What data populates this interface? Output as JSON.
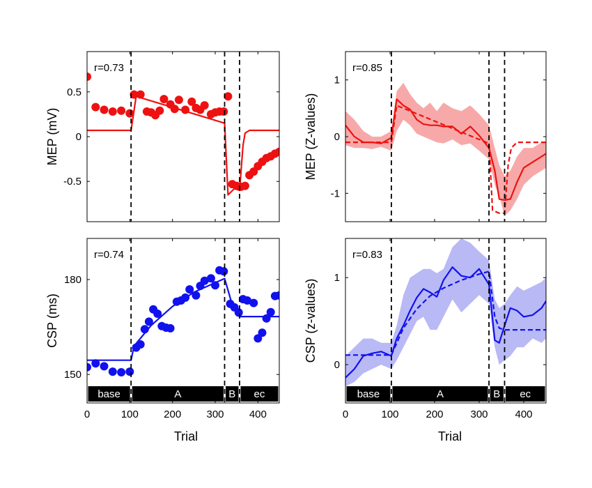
{
  "chart_data": [
    {
      "id": "mep_raw",
      "type": "scatter",
      "ylabel": "MEP (mV)",
      "xlabel": "",
      "r_label": "r=0.73",
      "xlim": [
        0,
        450
      ],
      "ylim": [
        -0.95,
        0.95
      ],
      "xticks": [
        0,
        100,
        200,
        300,
        400
      ],
      "show_xticklabels": false,
      "yticks": [
        -0.5,
        0,
        0.5
      ],
      "yticklabels": [
        "-0.5",
        "0",
        "0.5"
      ],
      "color": "#ee1111",
      "phase_lines": [
        103,
        322,
        357
      ],
      "series": [
        {
          "kind": "points",
          "x": [
            0,
            20,
            40,
            60,
            80,
            100,
            110,
            125,
            140,
            150,
            160,
            170,
            180,
            195,
            205,
            215,
            230,
            245,
            255,
            265,
            275,
            290,
            300,
            310,
            320,
            330,
            340,
            350,
            360,
            370,
            380,
            390,
            400,
            410,
            420,
            430,
            440,
            450
          ],
          "y": [
            0.67,
            0.33,
            0.3,
            0.28,
            0.29,
            0.26,
            0.47,
            0.47,
            0.28,
            0.27,
            0.24,
            0.29,
            0.42,
            0.36,
            0.31,
            0.41,
            0.3,
            0.39,
            0.32,
            0.3,
            0.35,
            0.25,
            0.27,
            0.28,
            0.28,
            0.45,
            -0.53,
            -0.55,
            -0.56,
            -0.55,
            -0.43,
            -0.39,
            -0.33,
            -0.28,
            -0.24,
            -0.22,
            -0.19,
            -0.17
          ]
        },
        {
          "kind": "line",
          "x": [
            0,
            103,
            115,
            322,
            330,
            345,
            357,
            365,
            370,
            380,
            450
          ],
          "y": [
            0.07,
            0.07,
            0.45,
            0.15,
            -0.65,
            -0.58,
            -0.6,
            -0.1,
            0.04,
            0.07,
            0.07
          ]
        }
      ],
      "segments": []
    },
    {
      "id": "mep_z",
      "type": "line",
      "ylabel": "MEP (Z-values)",
      "xlabel": "",
      "r_label": "r=0.85",
      "xlim": [
        0,
        450
      ],
      "ylim": [
        -1.5,
        1.5
      ],
      "xticks": [
        0,
        100,
        200,
        300,
        400
      ],
      "show_xticklabels": false,
      "yticks": [
        -1,
        0,
        1
      ],
      "yticklabels": [
        "-1",
        "0",
        "1"
      ],
      "color": "#ee1111",
      "band_color": "#f7a9a9",
      "phase_lines": [
        103,
        322,
        357
      ],
      "series": [
        {
          "kind": "band",
          "x": [
            0,
            20,
            40,
            60,
            80,
            103,
            115,
            130,
            145,
            160,
            175,
            190,
            205,
            220,
            240,
            260,
            280,
            300,
            322,
            335,
            345,
            357,
            370,
            385,
            400,
            420,
            440,
            450
          ],
          "lower": [
            -0.15,
            -0.2,
            -0.2,
            -0.22,
            -0.18,
            -0.25,
            0.1,
            0.3,
            0.2,
            0.05,
            0.0,
            -0.05,
            -0.1,
            -0.12,
            -0.05,
            -0.15,
            -0.12,
            -0.25,
            -0.4,
            -0.85,
            -1.05,
            -1.4,
            -1.3,
            -1.1,
            -0.85,
            -0.7,
            -0.6,
            -0.55
          ],
          "upper": [
            0.45,
            0.3,
            0.1,
            0.0,
            0.0,
            0.1,
            0.8,
            0.95,
            0.75,
            0.6,
            0.5,
            0.6,
            0.45,
            0.6,
            0.5,
            0.45,
            0.55,
            0.4,
            0.2,
            -0.2,
            -0.5,
            -0.7,
            -0.6,
            -0.35,
            -0.2,
            -0.2,
            -0.1,
            -0.1
          ]
        },
        {
          "kind": "line",
          "x": [
            0,
            20,
            40,
            60,
            80,
            103,
            115,
            130,
            145,
            160,
            175,
            190,
            205,
            220,
            240,
            260,
            280,
            300,
            322,
            335,
            345,
            357,
            370,
            385,
            400,
            420,
            440,
            450
          ],
          "y": [
            0.2,
            0.0,
            -0.1,
            -0.1,
            -0.12,
            -0.02,
            0.66,
            0.55,
            0.48,
            0.3,
            0.22,
            0.2,
            0.2,
            0.18,
            0.18,
            0.05,
            0.18,
            0.02,
            -0.2,
            -0.6,
            -1.1,
            -1.12,
            -1.1,
            -0.8,
            -0.55,
            -0.45,
            -0.35,
            -0.3
          ]
        },
        {
          "kind": "dashed",
          "x": [
            0,
            103,
            115,
            322,
            330,
            345,
            357,
            365,
            372,
            385,
            450
          ],
          "y": [
            -0.1,
            -0.1,
            0.55,
            -0.12,
            -1.3,
            -1.35,
            -1.35,
            -0.5,
            -0.2,
            -0.1,
            -0.1
          ]
        }
      ],
      "segments": []
    },
    {
      "id": "csp_raw",
      "type": "scatter",
      "ylabel": "CSP (ms)",
      "xlabel": "Trial",
      "r_label": "r=0.74",
      "xlim": [
        0,
        450
      ],
      "ylim": [
        141,
        193
      ],
      "xticks": [
        0,
        100,
        200,
        300,
        400
      ],
      "show_xticklabels": true,
      "xticklabels": [
        "0",
        "100",
        "200",
        "300",
        "400"
      ],
      "yticks": [
        150,
        180
      ],
      "yticklabels": [
        "150",
        "180"
      ],
      "color": "#1111ee",
      "phase_lines": [
        103,
        322,
        357
      ],
      "series": [
        {
          "kind": "points",
          "x": [
            0,
            20,
            40,
            60,
            80,
            100,
            115,
            125,
            135,
            145,
            155,
            165,
            175,
            185,
            195,
            210,
            220,
            230,
            240,
            255,
            265,
            275,
            290,
            300,
            310,
            320,
            335,
            345,
            355,
            365,
            375,
            390,
            400,
            410,
            420,
            430,
            440,
            450
          ],
          "y": [
            152.3,
            153.5,
            152.6,
            150.9,
            150.7,
            150.9,
            158.5,
            159.5,
            164.3,
            166.7,
            170.6,
            169.2,
            165.3,
            164.8,
            164.6,
            173.0,
            173.4,
            174.3,
            176.9,
            175.0,
            178.0,
            179.6,
            180.4,
            178.2,
            182.9,
            182.6,
            172.3,
            171.2,
            169.6,
            173.8,
            173.4,
            172.6,
            161.4,
            163.2,
            167.7,
            169.7,
            174.8,
            175.0
          ]
        },
        {
          "kind": "line",
          "x": [
            0,
            103,
            110,
            150,
            200,
            250,
            300,
            322,
            340,
            357,
            450
          ],
          "y": [
            154.5,
            154.5,
            159.0,
            165.5,
            171.5,
            176.0,
            179.0,
            180.3,
            172.0,
            168.3,
            168.3
          ]
        }
      ],
      "segments": [
        {
          "label": "base",
          "from": 0,
          "to": 103
        },
        {
          "label": "A",
          "from": 103,
          "to": 322
        },
        {
          "label": "B",
          "from": 322,
          "to": 357
        },
        {
          "label": "ec",
          "from": 357,
          "to": 450
        }
      ]
    },
    {
      "id": "csp_z",
      "type": "line",
      "ylabel": "CSP (z-values)",
      "xlabel": "Trial",
      "r_label": "r=0.83",
      "xlim": [
        0,
        450
      ],
      "ylim": [
        -0.44,
        1.45
      ],
      "xticks": [
        0,
        100,
        200,
        300,
        400
      ],
      "show_xticklabels": true,
      "xticklabels": [
        "0",
        "100",
        "200",
        "300",
        "400"
      ],
      "yticks": [
        0,
        1
      ],
      "yticklabels": [
        "0",
        "1"
      ],
      "color": "#1111ee",
      "band_color": "#b9b9f5",
      "phase_lines": [
        103,
        322,
        357
      ],
      "series": [
        {
          "kind": "band",
          "x": [
            0,
            20,
            40,
            60,
            80,
            103,
            115,
            130,
            145,
            160,
            175,
            190,
            205,
            220,
            240,
            260,
            280,
            300,
            322,
            335,
            345,
            357,
            370,
            385,
            400,
            420,
            440,
            450
          ],
          "lower": [
            -0.25,
            -0.2,
            -0.1,
            -0.05,
            0.0,
            -0.05,
            0.05,
            0.2,
            0.35,
            0.5,
            0.55,
            0.4,
            0.4,
            0.55,
            0.75,
            0.6,
            0.7,
            0.8,
            0.7,
            0.2,
            0.0,
            0.05,
            0.1,
            0.2,
            0.2,
            0.3,
            0.25,
            0.3
          ],
          "upper": [
            0.1,
            0.2,
            0.3,
            0.3,
            0.25,
            0.25,
            0.45,
            0.8,
            1.0,
            1.05,
            1.1,
            1.1,
            1.05,
            1.1,
            1.35,
            1.45,
            1.4,
            1.3,
            1.2,
            0.75,
            0.65,
            0.7,
            0.8,
            0.9,
            0.85,
            0.9,
            0.95,
            1.0
          ]
        },
        {
          "kind": "line",
          "x": [
            0,
            20,
            40,
            60,
            80,
            103,
            115,
            130,
            145,
            160,
            175,
            190,
            205,
            220,
            240,
            260,
            280,
            300,
            322,
            335,
            345,
            357,
            370,
            385,
            400,
            420,
            440,
            450
          ],
          "y": [
            -0.15,
            -0.05,
            0.1,
            0.13,
            0.15,
            0.1,
            0.3,
            0.45,
            0.62,
            0.77,
            0.87,
            0.83,
            0.78,
            0.97,
            1.12,
            1.02,
            1.0,
            1.1,
            0.92,
            0.28,
            0.25,
            0.45,
            0.65,
            0.62,
            0.55,
            0.57,
            0.65,
            0.73
          ]
        },
        {
          "kind": "dashed",
          "x": [
            0,
            103,
            130,
            160,
            190,
            220,
            260,
            300,
            322,
            335,
            345,
            357,
            450
          ],
          "y": [
            0.11,
            0.11,
            0.42,
            0.64,
            0.79,
            0.88,
            0.97,
            1.04,
            1.07,
            0.55,
            0.42,
            0.4,
            0.4
          ]
        }
      ],
      "segments": [
        {
          "label": "base",
          "from": 0,
          "to": 103
        },
        {
          "label": "A",
          "from": 103,
          "to": 322
        },
        {
          "label": "B",
          "from": 322,
          "to": 357
        },
        {
          "label": "ec",
          "from": 357,
          "to": 450
        }
      ]
    }
  ]
}
